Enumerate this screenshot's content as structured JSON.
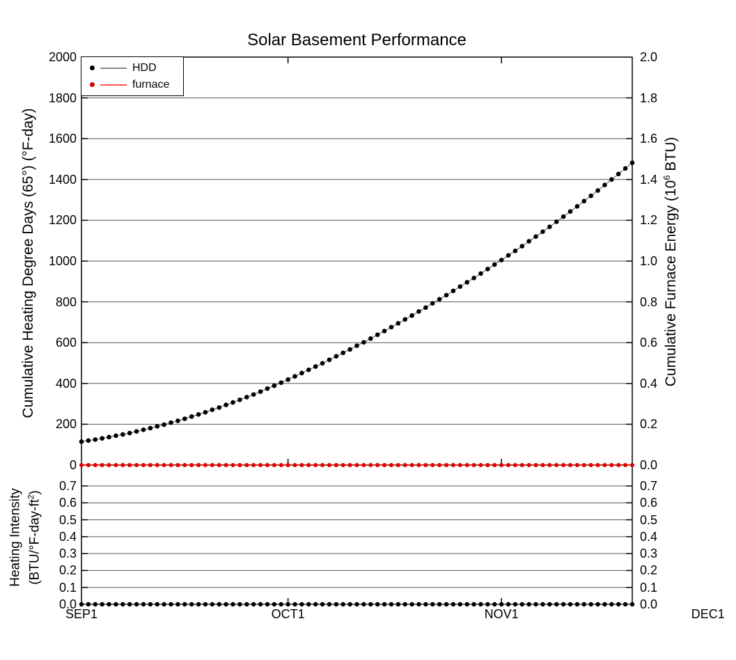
{
  "title": "Solar Basement Performance",
  "legend": {
    "items": [
      {
        "label": "HDD",
        "marker_color": "#000000",
        "line_color": "#888888"
      },
      {
        "label": "furnace",
        "marker_color": "#dd0000",
        "line_color": "#ff5555"
      }
    ]
  },
  "axes": {
    "left": {
      "title": "Cumulative Heating Degree Days (65°) (°F-day)",
      "tick_labels": [
        "2000",
        "1800",
        "1600",
        "1400",
        "1200",
        "1000",
        "800",
        "600",
        "400",
        "200",
        "0"
      ]
    },
    "right": {
      "title_pre": "Cumulative Furnace Energy (10",
      "title_sup": "6",
      "title_post": " BTU)",
      "tick_labels": [
        "2.0",
        "1.8",
        "1.6",
        "1.4",
        "1.2",
        "1.0",
        "0.8",
        "0.6",
        "0.4",
        "0.2",
        "0.0"
      ]
    },
    "bottom_left": {
      "title_line1": "Heating Intensity",
      "title2_pre": "(BTU/°F-day-ft",
      "title2_sup": "2",
      "title2_post": ")",
      "tick_labels": [
        "0.7",
        "0.6",
        "0.5",
        "0.4",
        "0.3",
        "0.2",
        "0.1",
        "0.0"
      ]
    },
    "bottom_right": {
      "tick_labels": [
        "0.7",
        "0.6",
        "0.5",
        "0.4",
        "0.3",
        "0.2",
        "0.1",
        "0.0"
      ]
    },
    "x": {
      "tick_labels": [
        "SEP1",
        "OCT1",
        "NOV1",
        "DEC1"
      ],
      "tick_days": [
        0,
        30,
        61,
        91
      ]
    }
  },
  "chart_data": {
    "type": "line",
    "title": "Solar Basement Performance",
    "x_axis": {
      "unit": "days",
      "start_label": "SEP1",
      "n_points": 81,
      "month_ticks": [
        "SEP1",
        "OCT1",
        "NOV1",
        "DEC1"
      ],
      "month_tick_days": [
        0,
        30,
        61,
        91
      ]
    },
    "panels": [
      {
        "name": "cumulative",
        "left_axis_label": "Cumulative Heating Degree Days (65°) (°F-day)",
        "left_ylim": [
          0,
          2000
        ],
        "left_tick_step": 200,
        "right_axis_label": "Cumulative Furnace Energy (10^6 BTU)",
        "right_ylim": [
          0,
          2.0
        ],
        "right_tick_step": 0.2,
        "grid": true,
        "series": [
          {
            "name": "HDD",
            "axis": "left",
            "color": "#000000",
            "line_color": "#555555",
            "style": "line+dots",
            "values": [
              115,
              120,
              125,
              131,
              137,
              144,
              150,
              157,
              165,
              173,
              181,
              190,
              198,
              208,
              217,
              227,
              238,
              248,
              259,
              271,
              282,
              295,
              307,
              320,
              333,
              346,
              360,
              375,
              389,
              404,
              419,
              435,
              451,
              467,
              483,
              499,
              516,
              533,
              550,
              567,
              585,
              602,
              620,
              639,
              657,
              676,
              695,
              714,
              733,
              753,
              772,
              793,
              813,
              833,
              854,
              875,
              896,
              917,
              939,
              961,
              983,
              1005,
              1028,
              1050,
              1073,
              1097,
              1120,
              1144,
              1168,
              1193,
              1218,
              1243,
              1268,
              1294,
              1320,
              1346,
              1373,
              1400,
              1427,
              1454,
              1482
            ]
          },
          {
            "name": "furnace",
            "axis": "right",
            "color": "#dd0000",
            "line_color": "#ff2222",
            "style": "line+dots",
            "constant_value": 0,
            "n_points": 81
          }
        ]
      },
      {
        "name": "intensity",
        "axis_label": "Heating Intensity (BTU/°F-day-ft^2)",
        "ylim": [
          0,
          0.82
        ],
        "tick_range": [
          0,
          0.7
        ],
        "tick_step": 0.1,
        "grid": true,
        "series": [
          {
            "name": "heating-intensity",
            "color": "#000000",
            "line_color": "#555555",
            "style": "line+dots",
            "constant_value": 0,
            "n_points": 81
          }
        ]
      }
    ]
  }
}
